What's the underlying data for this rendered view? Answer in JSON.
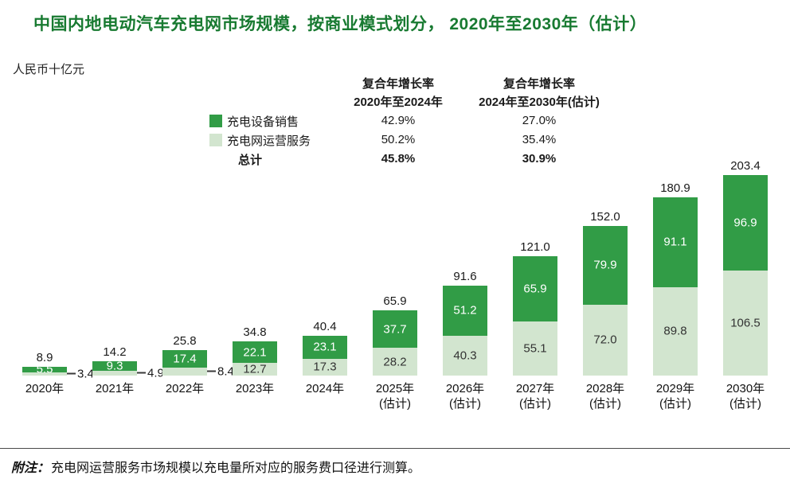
{
  "title": "中国内地电动汽车充电网市场规模，按商业模式划分， 2020年至2030年（估计）",
  "unit_label": "人民币十亿元",
  "legend": {
    "equipment": "充电设备销售",
    "operation": "充电网运营服务",
    "total": "总计"
  },
  "cagr": {
    "col1": {
      "header_line1": "复合年增长率",
      "header_line2": "2020年至2024年",
      "equipment": "42.9%",
      "operation": "50.2%",
      "total": "45.8%"
    },
    "col2": {
      "header_line1": "复合年增长率",
      "header_line2": "2024年至2030年(估计)",
      "equipment": "27.0%",
      "operation": "35.4%",
      "total": "30.9%"
    }
  },
  "footnote": {
    "prefix": "附注：",
    "text": "充电网运营服务市场规模以充电量所对应的服务费口径进行测算。"
  },
  "colors": {
    "title_green": "#187a31",
    "dark_green": "#319c46",
    "light_green": "#d2e5cf"
  },
  "chart_data": {
    "type": "bar",
    "stacked": true,
    "title": "中国内地电动汽车充电网市场规模，按商业模式划分，2020年至2030年（估计）",
    "ylabel": "人民币十亿元",
    "legend_position": "top-left",
    "grid": false,
    "ylim": [
      0,
      210
    ],
    "categories": [
      {
        "label": "2020年",
        "sublabel": ""
      },
      {
        "label": "2021年",
        "sublabel": ""
      },
      {
        "label": "2022年",
        "sublabel": ""
      },
      {
        "label": "2023年",
        "sublabel": ""
      },
      {
        "label": "2024年",
        "sublabel": ""
      },
      {
        "label": "2025年",
        "sublabel": "(估计)"
      },
      {
        "label": "2026年",
        "sublabel": "(估计)"
      },
      {
        "label": "2027年",
        "sublabel": "(估计)"
      },
      {
        "label": "2028年",
        "sublabel": "(估计)"
      },
      {
        "label": "2029年",
        "sublabel": "(估计)"
      },
      {
        "label": "2030年",
        "sublabel": "(估计)"
      }
    ],
    "series": [
      {
        "name": "充电设备销售",
        "color": "#319c46",
        "values": [
          5.5,
          9.3,
          17.4,
          22.1,
          23.1,
          37.7,
          51.2,
          65.9,
          79.9,
          91.1,
          96.9
        ]
      },
      {
        "name": "充电网运营服务",
        "color": "#d2e5cf",
        "values": [
          3.4,
          4.9,
          8.4,
          12.7,
          17.3,
          28.2,
          40.3,
          55.1,
          72.0,
          89.8,
          106.5
        ]
      }
    ],
    "totals": [
      8.9,
      14.2,
      25.8,
      34.8,
      40.4,
      65.9,
      91.6,
      121.0,
      152.0,
      180.9,
      203.4
    ],
    "outside_label_indices": [
      0,
      1,
      2
    ]
  }
}
